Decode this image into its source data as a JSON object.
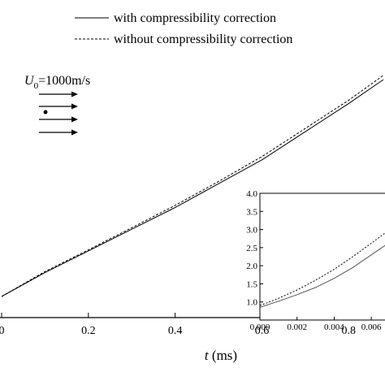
{
  "chart_data": {
    "type": "line",
    "title": "",
    "xlabel": {
      "symbol": "t",
      "unit": " (ms)"
    },
    "ylabel": "",
    "xlim": [
      0.0,
      0.88
    ],
    "ylim": [
      0.0,
      1.0
    ],
    "x_ticks": [
      "0",
      "0.2",
      "0.4",
      "0.6",
      "0.8"
    ],
    "x_tick_values": [
      0.0,
      0.2,
      0.4,
      0.6,
      0.8
    ],
    "y_ticks": [],
    "grid": false,
    "legend": {
      "placement": "top-center"
    },
    "series": [
      {
        "name": "with compressibility correction",
        "style": "solid",
        "x": [
          0.0,
          0.1,
          0.2,
          0.3,
          0.4,
          0.5,
          0.6,
          0.7,
          0.8,
          0.88
        ],
        "y": [
          0.0,
          0.11,
          0.21,
          0.31,
          0.41,
          0.52,
          0.63,
          0.76,
          0.89,
          1.0
        ]
      },
      {
        "name": "without compressibility correction",
        "style": "dashed",
        "x": [
          0.0,
          0.1,
          0.2,
          0.3,
          0.4,
          0.5,
          0.6,
          0.7,
          0.8,
          0.88
        ],
        "y": [
          0.0,
          0.115,
          0.215,
          0.317,
          0.42,
          0.53,
          0.645,
          0.775,
          0.905,
          1.02
        ]
      }
    ],
    "annotation": {
      "symbol": "U",
      "subscript": "0",
      "text": "=1000m/s"
    },
    "inset": {
      "type": "line",
      "xlim": [
        0.0,
        0.007
      ],
      "ylim": [
        0.5,
        4.0
      ],
      "x_ticks": [
        "0.000",
        "0.002",
        "0.004",
        "0.006"
      ],
      "x_tick_values": [
        0.0,
        0.002,
        0.004,
        0.006
      ],
      "y_ticks": [
        "1.0",
        "1.5",
        "2.0",
        "2.5",
        "3.0",
        "3.5",
        "4.0"
      ],
      "y_tick_values": [
        1.0,
        1.5,
        2.0,
        2.5,
        3.0,
        3.5,
        4.0
      ],
      "series": [
        {
          "name": "with compressibility correction",
          "style": "solid",
          "x": [
            0.0,
            0.001,
            0.002,
            0.003,
            0.004,
            0.005,
            0.006,
            0.007
          ],
          "y": [
            0.85,
            1.02,
            1.2,
            1.4,
            1.65,
            1.95,
            2.3,
            2.65
          ]
        },
        {
          "name": "without compressibility correction",
          "style": "dashed",
          "x": [
            0.0,
            0.001,
            0.002,
            0.003,
            0.004,
            0.005,
            0.006,
            0.007
          ],
          "y": [
            0.9,
            1.1,
            1.33,
            1.6,
            1.9,
            2.25,
            2.62,
            3.0
          ]
        }
      ]
    }
  }
}
